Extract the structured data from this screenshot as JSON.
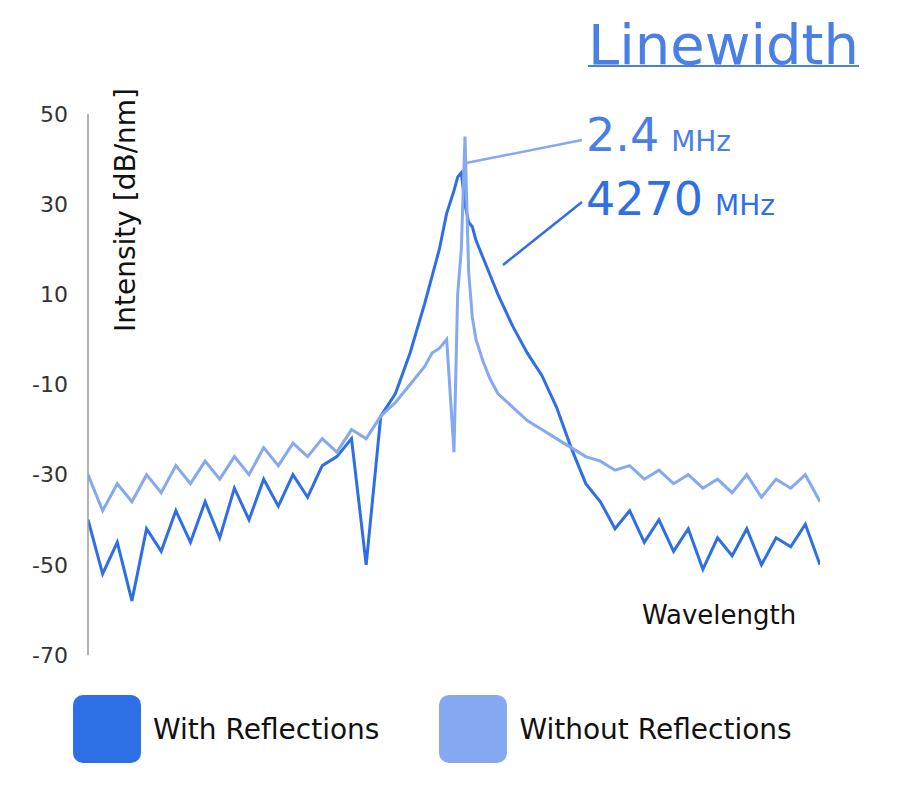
{
  "chart_data": {
    "type": "line",
    "title": "Linewidth",
    "x_label": "Wavelength",
    "y_label": "Intensity [dB/nm]",
    "x": [
      0,
      2,
      4,
      6,
      8,
      10,
      12,
      14,
      16,
      18,
      20,
      22,
      24,
      26,
      28,
      30,
      32,
      34,
      36,
      38,
      40,
      42,
      44,
      46,
      47,
      48,
      49,
      50,
      50.5,
      51,
      51.5,
      52,
      52.5,
      53,
      54,
      55,
      56,
      58,
      60,
      62,
      64,
      66,
      68,
      70,
      72,
      74,
      76,
      78,
      80,
      82,
      84,
      86,
      88,
      90,
      92,
      94,
      96,
      98,
      100
    ],
    "series": [
      {
        "name": "With Reflections",
        "color": "#2f6fe6",
        "values": [
          -40,
          -52,
          -45,
          -58,
          -42,
          -47,
          -38,
          -45,
          -36,
          -44,
          -33,
          -40,
          -31,
          -37,
          -30,
          -35,
          -28,
          -26,
          -22,
          -50,
          -17,
          -12,
          -3,
          8,
          14,
          20,
          28,
          33,
          36,
          37,
          30,
          26,
          25,
          22,
          18,
          14,
          10,
          3,
          -3,
          -8,
          -15,
          -24,
          -32,
          -36,
          -42,
          -38,
          -45,
          -40,
          -47,
          -42,
          -51,
          -44,
          -48,
          -42,
          -50,
          -44,
          -46,
          -41,
          -50
        ]
      },
      {
        "name": "Without Reflections",
        "color": "#84a9f0",
        "values": [
          -30,
          -38,
          -32,
          -36,
          -30,
          -34,
          -28,
          -32,
          -27,
          -31,
          -26,
          -30,
          -24,
          -28,
          -23,
          -26,
          -22,
          -25,
          -20,
          -22,
          -17,
          -14,
          -10,
          -6,
          -3,
          -2,
          0,
          -25,
          10,
          20,
          45,
          15,
          5,
          0,
          -5,
          -9,
          -12,
          -15,
          -18,
          -20,
          -22,
          -24,
          -26,
          -27,
          -29,
          -28,
          -31,
          -29,
          -32,
          -30,
          -33,
          -31,
          -34,
          -30,
          -35,
          -31,
          -33,
          -30,
          -36
        ]
      }
    ],
    "xlim": [
      0,
      100
    ],
    "ylim": [
      -70,
      50
    ],
    "yticks": [
      -70,
      -50,
      -30,
      -10,
      10,
      30,
      50
    ],
    "grid": false,
    "legend": "bottom",
    "tick_labels": "y",
    "annotations": [
      {
        "text": "2.4",
        "unit": "MHz",
        "series": "Without Reflections"
      },
      {
        "text": "4270",
        "unit": "MHz",
        "series": "With Reflections"
      }
    ]
  }
}
